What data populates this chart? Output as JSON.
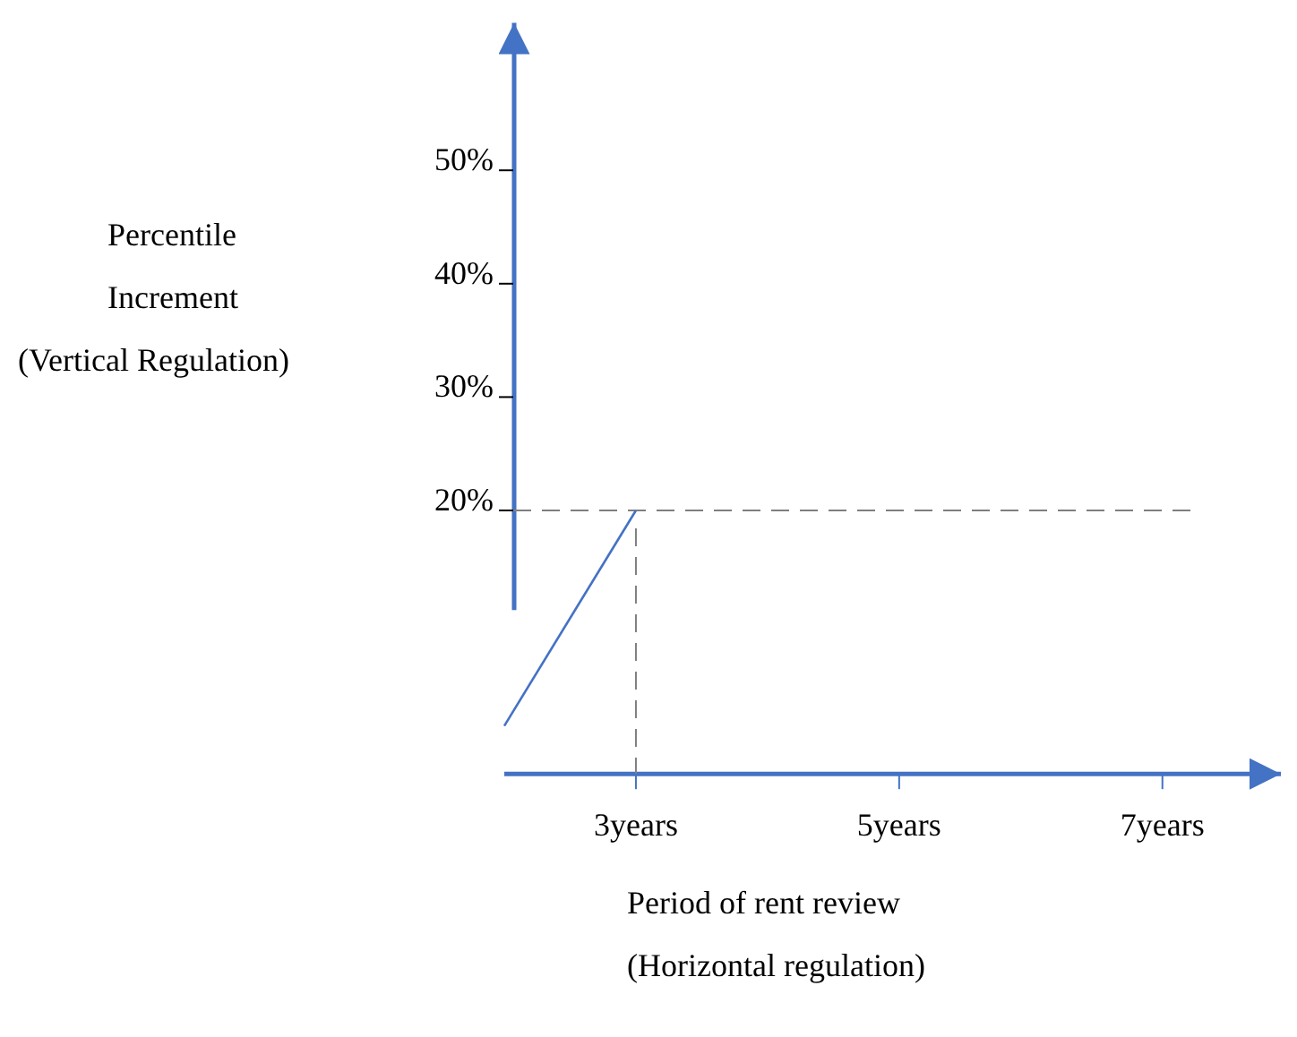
{
  "chart_data": {
    "type": "line",
    "xlabel": "Period of rent review\n(Horizontal regulation)",
    "ylabel": "Percentile\nIncrement\n(Vertical Regulation)",
    "x": [
      2,
      3
    ],
    "series": [
      {
        "color": "#4472c4",
        "values": [
          1,
          20
        ]
      }
    ],
    "xlim": [
      2,
      7.9
    ],
    "xticks": [
      {
        "value": 3,
        "label": "3years"
      },
      {
        "value": 5,
        "label": "5years"
      },
      {
        "value": 7,
        "label": "7years"
      }
    ],
    "ylim": [
      -3,
      63
    ],
    "yticks": [
      {
        "value": 20,
        "label": "20%"
      },
      {
        "value": 30,
        "label": "30%"
      },
      {
        "value": 40,
        "label": "40%"
      },
      {
        "value": 50,
        "label": "50%"
      }
    ],
    "ref_lines": [
      {
        "axis": "y",
        "value": 20,
        "color": "#7f7f7f",
        "line_style": "dashed"
      },
      {
        "axis": "x",
        "value": 3,
        "color": "#7f7f7f",
        "line_style": "dashed"
      }
    ],
    "marker": "none",
    "line_style": "solid"
  }
}
